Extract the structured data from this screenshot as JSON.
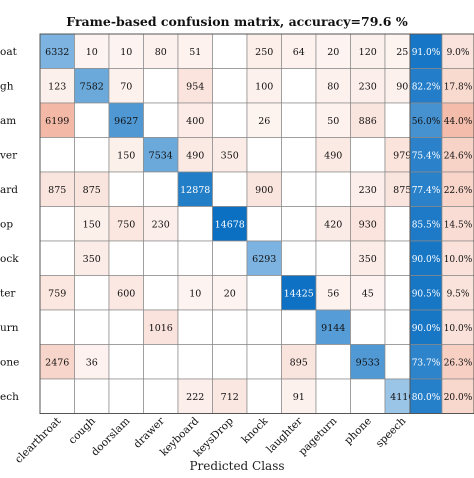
{
  "chart_data": {
    "type": "heatmap",
    "title": "Frame-based confusion matrix, accuracy=79.6 %",
    "xlabel": "Predicted Class",
    "true_class_tick_labels": [
      "oat",
      "gh",
      "am",
      "ver",
      "ard",
      "op",
      "ock",
      "ter",
      "urn",
      "one",
      "ech"
    ],
    "predicted_classes": [
      "clearthroat",
      "cough",
      "doorslam",
      "drawer",
      "keyboard",
      "keysDrop",
      "knock",
      "laughter",
      "pageturn",
      "phone",
      "speech"
    ],
    "matrix": [
      [
        6332,
        10,
        10,
        80,
        51,
        null,
        250,
        64,
        20,
        120,
        25
      ],
      [
        123,
        7582,
        70,
        null,
        954,
        null,
        100,
        null,
        80,
        230,
        90
      ],
      [
        6199,
        null,
        9627,
        null,
        400,
        null,
        26,
        null,
        50,
        886,
        null
      ],
      [
        null,
        null,
        150,
        7534,
        490,
        350,
        null,
        null,
        490,
        null,
        979
      ],
      [
        875,
        875,
        null,
        null,
        12878,
        null,
        900,
        null,
        null,
        230,
        875
      ],
      [
        null,
        150,
        750,
        230,
        null,
        14678,
        null,
        null,
        420,
        930,
        null
      ],
      [
        null,
        350,
        null,
        null,
        null,
        null,
        6293,
        null,
        null,
        350,
        null
      ],
      [
        759,
        null,
        600,
        null,
        10,
        20,
        null,
        14425,
        56,
        45,
        null
      ],
      [
        null,
        null,
        null,
        1016,
        null,
        null,
        null,
        null,
        9144,
        null,
        null
      ],
      [
        2476,
        36,
        null,
        null,
        null,
        null,
        null,
        895,
        null,
        9533,
        null
      ],
      [
        null,
        null,
        null,
        null,
        222,
        712,
        null,
        91,
        null,
        null,
        4110
      ]
    ],
    "row_summary": {
      "correct": [
        "91.0%",
        "82.2%",
        "56.0%",
        "75.4%",
        "77.4%",
        "85.5%",
        "90.0%",
        "90.5%",
        "90.0%",
        "73.7%",
        "80.0%"
      ],
      "incorrect": [
        "9.0%",
        "17.8%",
        "44.0%",
        "24.6%",
        "22.6%",
        "14.5%",
        "10.0%",
        "9.5%",
        "10.0%",
        "26.3%",
        "20.0%"
      ]
    },
    "colors": {
      "diagonal_low": "#d2e6f6",
      "diagonal_high": "#0b6fc2",
      "offdiag_low": "#fdf4f1",
      "offdiag_high": "#f3b9a6",
      "grid": "#8a8a8a"
    }
  }
}
